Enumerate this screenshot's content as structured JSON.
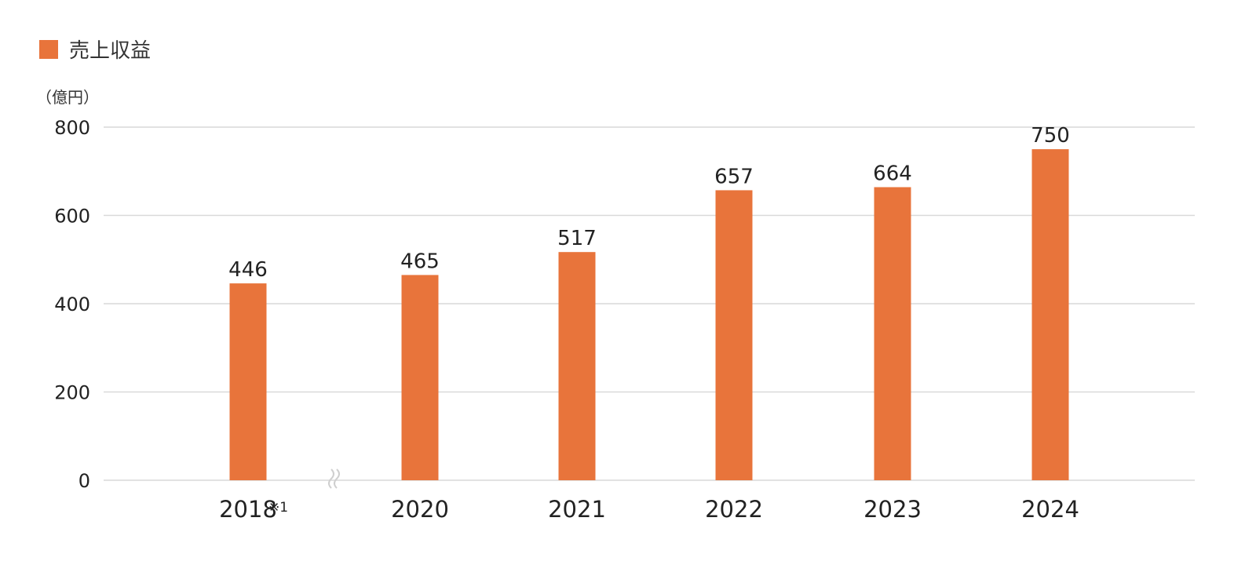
{
  "chart_data": {
    "type": "bar",
    "categories": [
      "2018",
      "2020",
      "2021",
      "2022",
      "2023",
      "2024"
    ],
    "category_notes": [
      "※1",
      "",
      "",
      "",
      "",
      ""
    ],
    "series": [
      {
        "name": "売上収益",
        "values": [
          446,
          465,
          517,
          657,
          664,
          750
        ],
        "color": "#E8743B"
      }
    ],
    "ylabel": "（億円）",
    "yticks": [
      0,
      200,
      400,
      600,
      800
    ],
    "ylim": [
      0,
      800
    ],
    "grid": true,
    "legend_position": "top-left",
    "axis_break_after_index": 0
  },
  "colors": {
    "bar": "#E8743B",
    "grid": "#d9d9d9",
    "break_mark": "#cfcfcf"
  }
}
